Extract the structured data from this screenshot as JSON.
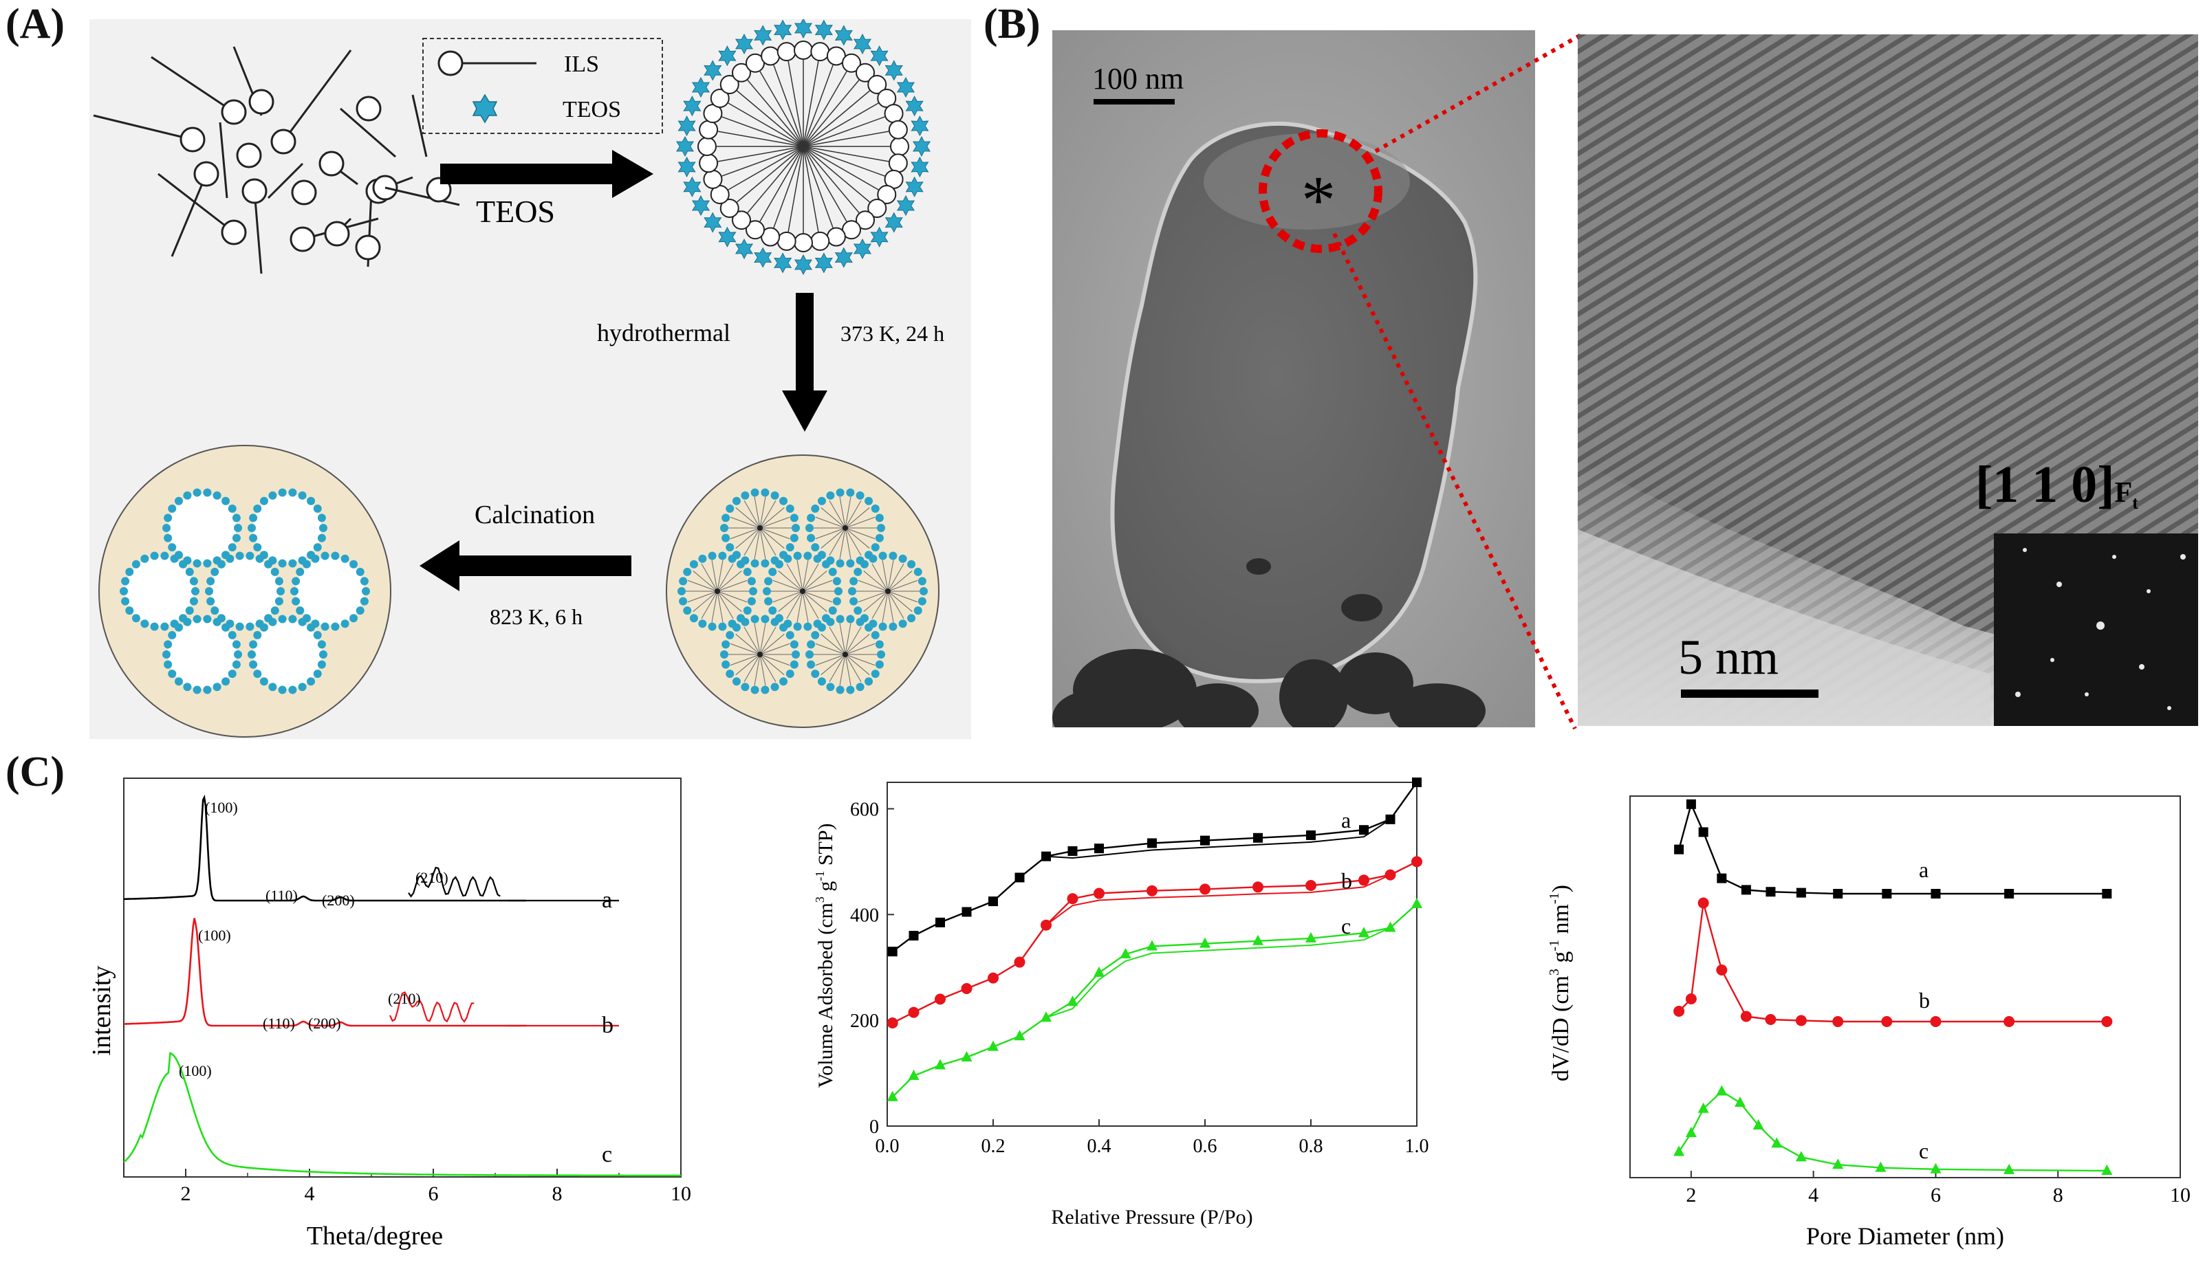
{
  "labels": {
    "A": "(A)",
    "B": "(B)",
    "C": "(C)"
  },
  "scheme": {
    "legend_ils": "ILS",
    "legend_teos": "TEOS",
    "arrow1_label": "TEOS",
    "arrow2_left": "hydrothermal",
    "arrow2_right": "373 K, 24 h",
    "arrow3_top": "Calcination",
    "arrow3_bottom": "823 K, 6 h"
  },
  "tem": {
    "scalebar": "100 nm",
    "marker": "*"
  },
  "hrtem": {
    "scalebar": "5 nm",
    "zone_axis": "[1 1 0]",
    "zone_sub": "F",
    "zone_subsub": "t"
  },
  "colors": {
    "a": "#000000",
    "b": "#e8141b",
    "c": "#22e01a",
    "teos": "#2aa3c9",
    "bead": "#f1e6cc"
  },
  "chart_data": [
    {
      "type": "line",
      "title": "",
      "xlabel": "Theta/degree",
      "ylabel": "intensity",
      "xlim": [
        1,
        10
      ],
      "xticks": [
        "2",
        "4",
        "6",
        "8",
        "10"
      ],
      "series": [
        {
          "name": "a",
          "peaks": {
            "100": "(100)",
            "110": "(110)",
            "200": "(200)",
            "210": "(210)"
          },
          "main_peak_x": 2.3
        },
        {
          "name": "b",
          "peaks": {
            "100": "(100)",
            "110": "(110)",
            "200": "(200)",
            "210": "(210)"
          },
          "main_peak_x": 2.15
        },
        {
          "name": "c",
          "peaks": {
            "100": "(100)"
          },
          "main_peak_x": 1.75
        }
      ]
    },
    {
      "type": "line",
      "xlabel": "Relative Pressure (P/Po)",
      "ylabel": "Volume Adsorbed (cm3 g-1 STP)",
      "ylabel_parts": [
        "Volume Adsorbed (cm",
        "3",
        "g",
        "-1",
        "STP)"
      ],
      "xlim": [
        0,
        1
      ],
      "ylim": [
        0,
        650
      ],
      "xticks": [
        "0.0",
        "0.2",
        "0.4",
        "0.6",
        "0.8",
        "1.0"
      ],
      "yticks": [
        "0",
        "200",
        "400",
        "600"
      ],
      "series": [
        {
          "name": "a",
          "x": [
            0.01,
            0.05,
            0.1,
            0.15,
            0.2,
            0.25,
            0.3,
            0.35,
            0.4,
            0.5,
            0.6,
            0.7,
            0.8,
            0.9,
            0.95,
            1.0
          ],
          "y": [
            330,
            360,
            385,
            405,
            425,
            470,
            510,
            520,
            525,
            535,
            540,
            545,
            550,
            560,
            580,
            650
          ]
        },
        {
          "name": "b",
          "x": [
            0.01,
            0.05,
            0.1,
            0.15,
            0.2,
            0.25,
            0.3,
            0.35,
            0.4,
            0.5,
            0.6,
            0.7,
            0.8,
            0.9,
            0.95,
            1.0
          ],
          "y": [
            195,
            215,
            240,
            260,
            280,
            310,
            380,
            430,
            440,
            445,
            448,
            452,
            455,
            465,
            475,
            500
          ]
        },
        {
          "name": "c",
          "x": [
            0.01,
            0.05,
            0.1,
            0.15,
            0.2,
            0.25,
            0.3,
            0.35,
            0.4,
            0.45,
            0.5,
            0.6,
            0.7,
            0.8,
            0.9,
            0.95,
            1.0
          ],
          "y": [
            55,
            95,
            115,
            130,
            150,
            170,
            205,
            235,
            290,
            325,
            340,
            345,
            350,
            355,
            365,
            375,
            420
          ]
        }
      ]
    },
    {
      "type": "line",
      "xlabel": "Pore Diameter (nm)",
      "ylabel": "dV/dD (cm3 g-1 nm-1)",
      "ylabel_parts": [
        "dV/dD (cm",
        "3",
        "g",
        "-1",
        "nm",
        "-1",
        ")"
      ],
      "xlim": [
        1,
        10
      ],
      "xticks": [
        "2",
        "4",
        "6",
        "8",
        "10"
      ],
      "series": [
        {
          "name": "a",
          "x": [
            1.8,
            2.0,
            2.2,
            2.5,
            2.9,
            3.3,
            3.8,
            4.4,
            5.2,
            6.0,
            7.2,
            8.8
          ],
          "y": [
            0.46,
            0.93,
            0.64,
            0.16,
            0.04,
            0.02,
            0.01,
            0.0,
            0.0,
            0.0,
            0.0,
            0.0
          ]
        },
        {
          "name": "b",
          "x": [
            1.8,
            2.0,
            2.2,
            2.5,
            2.9,
            3.3,
            3.8,
            4.4,
            5.2,
            6.0,
            7.2,
            8.8
          ],
          "y": [
            0.1,
            0.22,
            1.15,
            0.5,
            0.05,
            0.02,
            0.01,
            0.0,
            0.0,
            0.0,
            0.0,
            0.0
          ]
        },
        {
          "name": "c",
          "x": [
            1.8,
            2.0,
            2.2,
            2.5,
            2.8,
            3.1,
            3.4,
            3.8,
            4.4,
            5.1,
            6.0,
            7.2,
            8.8
          ],
          "y": [
            0.25,
            0.5,
            0.82,
            1.05,
            0.9,
            0.6,
            0.36,
            0.18,
            0.08,
            0.04,
            0.02,
            0.01,
            0.0
          ]
        }
      ]
    }
  ]
}
